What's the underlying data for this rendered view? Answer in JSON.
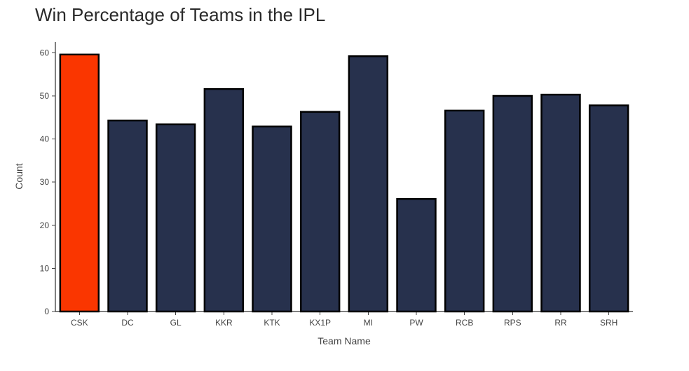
{
  "chart_data": {
    "type": "bar",
    "title": "Win  Percentage of Teams in the IPL",
    "xlabel": "Team Name",
    "ylabel": "Count",
    "categories": [
      "CSK",
      "DC",
      "GL",
      "KKR",
      "KTK",
      "KX1P",
      "MI",
      "PW",
      "RCB",
      "RPS",
      "RR",
      "SRH"
    ],
    "values": [
      59.6,
      44.3,
      43.4,
      51.6,
      42.9,
      46.3,
      59.2,
      26.1,
      46.6,
      50.0,
      50.3,
      47.8
    ],
    "ylim": [
      0,
      62.5
    ],
    "yticks": [
      0,
      10,
      20,
      30,
      40,
      50,
      60
    ],
    "grid": false,
    "highlight_index": 0,
    "colors": {
      "highlight": "#fa3600",
      "bar": "#27314d",
      "outline": "#000000"
    }
  }
}
